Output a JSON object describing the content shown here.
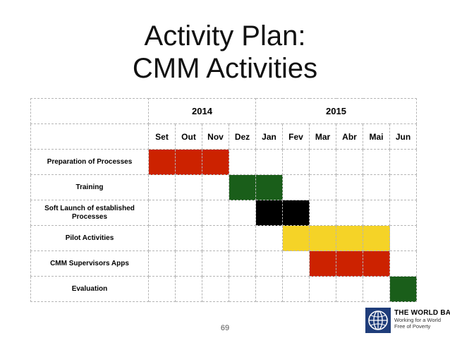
{
  "title": {
    "line1": "Activity Plan:",
    "line2": "CMM Activities"
  },
  "years": [
    {
      "label": "2014",
      "span": 4
    },
    {
      "label": "2015",
      "span": 6
    }
  ],
  "months": [
    "Set",
    "Out",
    "Nov",
    "Dez",
    "Jan",
    "Fev",
    "Mar",
    "Abr",
    "Mai",
    "Jun"
  ],
  "colors": {
    "red": "#cc2200",
    "green": "#1a5e1a",
    "black": "#000000",
    "yellow": "#f5d327"
  },
  "activities": [
    {
      "label": "Preparation of Processes",
      "start": 0,
      "end": 2,
      "color": "#cc2200"
    },
    {
      "label": "Training",
      "start": 3,
      "end": 4,
      "color": "#1a5e1a"
    },
    {
      "label": "Soft Launch of established Processes",
      "start": 4,
      "end": 5,
      "color": "#000000"
    },
    {
      "label": "Pilot Activities",
      "start": 5,
      "end": 8,
      "color": "#f5d327"
    },
    {
      "label": "CMM Supervisors Apps",
      "start": 6,
      "end": 8,
      "color": "#cc2200"
    },
    {
      "label": "Evaluation",
      "start": 9,
      "end": 9,
      "color": "#1a5e1a"
    }
  ],
  "page_number": "69",
  "logo": {
    "name": "THE WORLD BANK",
    "tagline": "Working for a World Free of Poverty",
    "icon": "world-bank-globe-icon"
  }
}
